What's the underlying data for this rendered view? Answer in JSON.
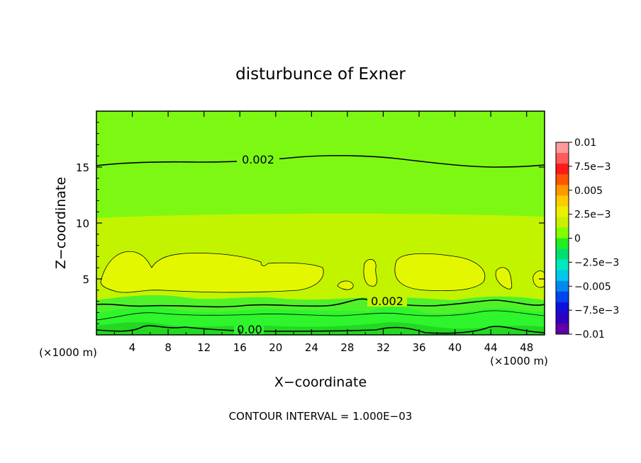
{
  "chart_data": {
    "type": "contour",
    "title": "disturbunce of Exner",
    "xlabel": "X−coordinate",
    "ylabel": "Z−coordinate",
    "x_unit_left": "(×1000 m)",
    "x_unit_right": "(×1000 m)",
    "xlim": [
      0,
      50
    ],
    "ylim": [
      0,
      20
    ],
    "xticks": [
      "4",
      "8",
      "12",
      "16",
      "20",
      "24",
      "28",
      "32",
      "36",
      "40",
      "44",
      "48"
    ],
    "xtick_values": [
      4,
      8,
      12,
      16,
      20,
      24,
      28,
      32,
      36,
      40,
      44,
      48
    ],
    "yticks": [
      "5",
      "10",
      "15"
    ],
    "ytick_values": [
      5,
      10,
      15
    ],
    "footer": "CONTOUR INTERVAL = 1.000E−03",
    "contour_labels": [
      {
        "text": "0.002",
        "x": 18,
        "z": 15.4
      },
      {
        "text": "0.002",
        "x": 31.5,
        "z": 2.9
      },
      {
        "text": "0.00",
        "x": 17,
        "z": 0.4
      }
    ],
    "field_levels_approx": [
      {
        "z_range": [
          0,
          0.6
        ],
        "value": 0.0
      },
      {
        "z_range": [
          0.6,
          1.4
        ],
        "value": 0.0005
      },
      {
        "z_range": [
          1.4,
          2.8
        ],
        "value": 0.001
      },
      {
        "z_range": [
          2.8,
          3.8
        ],
        "value": 0.002
      },
      {
        "z_range": [
          3.8,
          10.5
        ],
        "value": 0.0025
      },
      {
        "z_range": [
          10.5,
          15.5
        ],
        "value": 0.0022
      },
      {
        "z_range": [
          15.5,
          20
        ],
        "value": 0.0018
      }
    ],
    "colorbar": {
      "ticks": [
        "0.01",
        "7.5e−3",
        "0.005",
        "2.5e−3",
        "0",
        "−2.5e−3",
        "−0.005",
        "−7.5e−3",
        "−0.01"
      ],
      "tick_values": [
        0.01,
        0.0075,
        0.005,
        0.0025,
        0,
        -0.0025,
        -0.005,
        -0.0075,
        -0.01
      ],
      "range": [
        -0.01,
        0.01
      ],
      "colors_top_to_bottom": [
        "#ff9a9a",
        "#ff5a5a",
        "#ff1a1a",
        "#ff5500",
        "#ff9900",
        "#ffcc00",
        "#eeee00",
        "#c8f000",
        "#80ff00",
        "#22ee22",
        "#00e070",
        "#00e8c0",
        "#00c8ee",
        "#0088ee",
        "#0044ee",
        "#1010dd",
        "#3000c0",
        "#6000a8"
      ]
    },
    "colors": {
      "upper": "#7df813",
      "mid": "#c2f400",
      "cell": "#e3f800",
      "near_ground": "#2ef52c",
      "band1": "#4ff22a",
      "band2": "#6df014"
    }
  }
}
